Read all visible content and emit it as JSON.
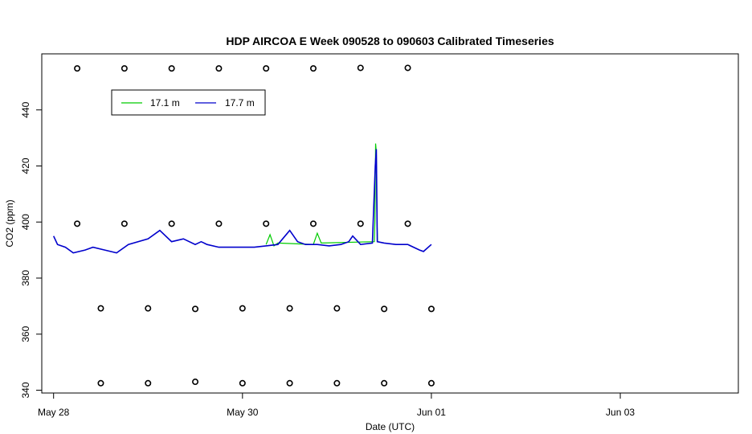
{
  "chart_data": {
    "type": "line",
    "title": "HDP AIRCOA E  Week 090528 to 090603  Calibrated Timeseries",
    "xlabel": "Date (UTC)",
    "ylabel": "CO2 (ppm)",
    "xlim": [
      "2009-05-27 21:00",
      "2009-06-04 06:00"
    ],
    "ylim": [
      339,
      460
    ],
    "x_ticks": [
      "May 28",
      "May 30",
      "Jun 01",
      "Jun 03"
    ],
    "y_ticks": [
      340,
      360,
      380,
      400,
      420,
      440
    ],
    "grid": false,
    "legend": {
      "position": "top-left"
    },
    "colors": {
      "17.1 m": "#00cc00",
      "17.7 m": "#0000cc"
    },
    "series": [
      {
        "name": "17.1 m",
        "x": [
          "2009-05-30 06:00",
          "2009-05-30 07:00",
          "2009-05-30 08:00",
          "2009-05-30 09:00",
          "2009-05-30 18:00",
          "2009-05-30 19:00",
          "2009-05-30 20:00",
          "2009-05-31 09:30",
          "2009-05-31 09:40",
          "2009-05-31 09:50",
          "2009-05-31 10:00",
          "2009-05-31 10:10",
          "2009-05-31 10:20"
        ],
        "y": [
          392,
          395.5,
          391.5,
          392.5,
          392,
          396,
          392.5,
          393,
          401,
          428,
          425,
          400,
          393
        ]
      },
      {
        "name": "17.7 m",
        "x": [
          "2009-05-28 00:00",
          "2009-05-28 01:00",
          "2009-05-28 03:00",
          "2009-05-28 05:00",
          "2009-05-28 08:00",
          "2009-05-28 10:00",
          "2009-05-28 13:00",
          "2009-05-28 16:00",
          "2009-05-28 19:00",
          "2009-05-29 00:00",
          "2009-05-29 03:00",
          "2009-05-29 06:00",
          "2009-05-29 09:00",
          "2009-05-29 12:00",
          "2009-05-29 13:30",
          "2009-05-29 15:00",
          "2009-05-29 18:00",
          "2009-05-29 21:00",
          "2009-05-30 00:00",
          "2009-05-30 03:00",
          "2009-05-30 06:00",
          "2009-05-30 09:00",
          "2009-05-30 12:00",
          "2009-05-30 14:00",
          "2009-05-30 16:00",
          "2009-05-30 19:00",
          "2009-05-30 22:00",
          "2009-05-31 01:00",
          "2009-05-31 03:00",
          "2009-05-31 04:00",
          "2009-05-31 06:00",
          "2009-05-31 09:00",
          "2009-05-31 09:45",
          "2009-05-31 10:00",
          "2009-05-31 10:15",
          "2009-05-31 12:00",
          "2009-05-31 15:00",
          "2009-05-31 18:00",
          "2009-05-31 21:00",
          "2009-05-31 22:00",
          "2009-06-01 00:00"
        ],
        "y": [
          395,
          392,
          391,
          389,
          390,
          391,
          390,
          389,
          392,
          394,
          397,
          393,
          394,
          392,
          393,
          392,
          391,
          391,
          391,
          391,
          391.5,
          392,
          397,
          393,
          392,
          392,
          391.5,
          392,
          393,
          395,
          392,
          392.5,
          420,
          426,
          393,
          392.5,
          392,
          392,
          390,
          389.5,
          392
        ]
      },
      {
        "name": "",
        "style": "points",
        "x": [
          "2009-05-28 12:00",
          "2009-05-29 00:00",
          "2009-05-29 12:00",
          "2009-05-30 00:00",
          "2009-05-30 12:00",
          "2009-05-31 00:00",
          "2009-05-31 12:00",
          "2009-06-01 00:00",
          "2009-05-28 12:00",
          "2009-05-29 00:00",
          "2009-05-29 12:00",
          "2009-05-30 00:00",
          "2009-05-30 12:00",
          "2009-05-31 00:00",
          "2009-05-31 12:00",
          "2009-06-01 00:00"
        ],
        "y": [
          342.5,
          342.5,
          343,
          342.5,
          342.5,
          342.5,
          342.5,
          342.5,
          369.2,
          369.2,
          369,
          369.2,
          369.2,
          369.2,
          369,
          369
        ]
      },
      {
        "name": "",
        "style": "points",
        "x": [
          "2009-05-28 06:00",
          "2009-05-28 18:00",
          "2009-05-29 06:00",
          "2009-05-29 18:00",
          "2009-05-30 06:00",
          "2009-05-30 18:00",
          "2009-05-31 06:00",
          "2009-05-31 18:00",
          "2009-05-28 06:00",
          "2009-05-28 18:00",
          "2009-05-29 06:00",
          "2009-05-29 18:00",
          "2009-05-30 06:00",
          "2009-05-30 18:00",
          "2009-05-31 06:00",
          "2009-05-31 18:00"
        ],
        "y": [
          399.4,
          399.4,
          399.4,
          399.4,
          399.4,
          399.4,
          399.4,
          399.4,
          454.8,
          454.8,
          454.8,
          454.8,
          454.8,
          454.8,
          455,
          455
        ]
      }
    ]
  }
}
